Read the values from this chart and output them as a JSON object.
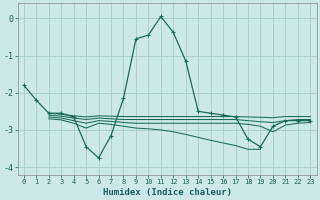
{
  "xlabel": "Humidex (Indice chaleur)",
  "bg_color": "#cce8e8",
  "grid_color": "#aacccc",
  "line_color": "#1a6b5a",
  "xlim": [
    -0.5,
    23.5
  ],
  "ylim": [
    -4.2,
    0.4
  ],
  "yticks": [
    0,
    -1,
    -2,
    -3,
    -4
  ],
  "xticks": [
    0,
    1,
    2,
    3,
    4,
    5,
    6,
    7,
    8,
    9,
    10,
    11,
    12,
    13,
    14,
    15,
    16,
    17,
    18,
    19,
    20,
    21,
    22,
    23
  ],
  "line1_x": [
    0,
    1,
    2,
    3,
    4,
    5,
    6,
    7,
    8,
    9,
    10,
    11,
    12,
    13,
    14,
    15,
    16,
    17,
    18,
    19,
    20,
    21,
    22,
    23
  ],
  "line1_y": [
    -1.8,
    -2.2,
    -2.55,
    -2.55,
    -2.65,
    -3.45,
    -3.75,
    -3.15,
    -2.15,
    -0.55,
    -0.45,
    0.05,
    -0.38,
    -1.15,
    -2.5,
    -2.55,
    -2.6,
    -2.65,
    -3.25,
    -3.45,
    -2.9,
    -2.75,
    -2.75,
    -2.75
  ],
  "line2_x": [
    2,
    3,
    4,
    5,
    6,
    7,
    8,
    9,
    10,
    11,
    12,
    13,
    14,
    15,
    16,
    17,
    18,
    19,
    20,
    21,
    22,
    23
  ],
  "line2_y": [
    -2.55,
    -2.58,
    -2.62,
    -2.65,
    -2.62,
    -2.63,
    -2.64,
    -2.64,
    -2.64,
    -2.64,
    -2.64,
    -2.64,
    -2.64,
    -2.64,
    -2.64,
    -2.64,
    -2.65,
    -2.66,
    -2.67,
    -2.64,
    -2.64,
    -2.64
  ],
  "line3_x": [
    2,
    3,
    4,
    5,
    6,
    7,
    8,
    9,
    10,
    11,
    12,
    13,
    14,
    15,
    16,
    17,
    18,
    19,
    20,
    21,
    22,
    23
  ],
  "line3_y": [
    -2.6,
    -2.63,
    -2.68,
    -2.72,
    -2.68,
    -2.7,
    -2.72,
    -2.72,
    -2.72,
    -2.72,
    -2.72,
    -2.72,
    -2.72,
    -2.72,
    -2.72,
    -2.72,
    -2.75,
    -2.78,
    -2.8,
    -2.75,
    -2.72,
    -2.72
  ],
  "line4_x": [
    2,
    3,
    4,
    5,
    6,
    7,
    8,
    9,
    10,
    11,
    12,
    13,
    14,
    15,
    16,
    17,
    18,
    19,
    20,
    21,
    22,
    23
  ],
  "line4_y": [
    -2.65,
    -2.68,
    -2.75,
    -2.82,
    -2.75,
    -2.77,
    -2.8,
    -2.82,
    -2.82,
    -2.82,
    -2.82,
    -2.82,
    -2.82,
    -2.82,
    -2.82,
    -2.82,
    -2.85,
    -2.9,
    -3.05,
    -2.87,
    -2.82,
    -2.8
  ],
  "line5_x": [
    2,
    3,
    4,
    5,
    6,
    7,
    8,
    9,
    10,
    11,
    12,
    13,
    14,
    15,
    16,
    17,
    18,
    19
  ],
  "line5_y": [
    -2.7,
    -2.73,
    -2.82,
    -2.95,
    -2.82,
    -2.85,
    -2.9,
    -2.95,
    -2.97,
    -3.0,
    -3.05,
    -3.12,
    -3.2,
    -3.28,
    -3.35,
    -3.42,
    -3.52,
    -3.52
  ]
}
